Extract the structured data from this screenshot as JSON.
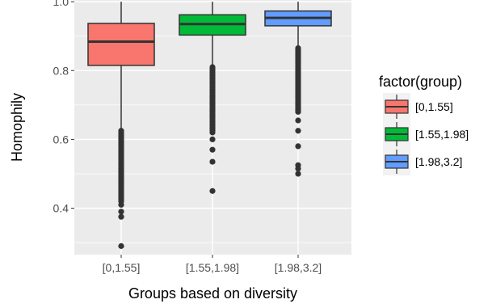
{
  "chart_data": {
    "type": "boxplot",
    "xlabel": "Groups based on diversity",
    "ylabel": "Homophily",
    "ylim": [
      0.265,
      1.005
    ],
    "yticks": [
      0.4,
      0.6,
      0.8,
      1.0
    ],
    "ytick_labels": [
      "0.4",
      "0.6",
      "0.8",
      "1.0"
    ],
    "categories": [
      "[0,1.55]",
      "[1.55,1.98]",
      "[1.98,3.2]"
    ],
    "legend": {
      "title": "factor(group)",
      "placement": "right",
      "entries": [
        "[0,1.55]",
        "[1.55,1.98]",
        "[1.98,3.2]"
      ]
    },
    "panel_background": "#ebebeb",
    "grid": true,
    "boxes": [
      {
        "name": "[0,1.55]",
        "color": "#F8766D",
        "whisker_low": 0.628,
        "q1": 0.815,
        "median": 0.884,
        "q3": 0.937,
        "whisker_high": 1.0,
        "outliers_range": [
          0.42,
          0.625
        ],
        "outliers_extra": [
          0.41,
          0.39,
          0.375,
          0.29
        ]
      },
      {
        "name": "[1.55,1.98]",
        "color": "#00BA38",
        "whisker_low": 0.812,
        "q1": 0.903,
        "median": 0.935,
        "q3": 0.962,
        "whisker_high": 1.0,
        "outliers_range": [
          0.62,
          0.81
        ],
        "outliers_extra": [
          0.6,
          0.57,
          0.535,
          0.45
        ]
      },
      {
        "name": "[1.98,3.2]",
        "color": "#619CFF",
        "whisker_low": 0.868,
        "q1": 0.93,
        "median": 0.953,
        "q3": 0.973,
        "whisker_high": 1.0,
        "outliers_range": [
          0.68,
          0.865
        ],
        "outliers_extra": [
          0.655,
          0.625,
          0.58,
          0.525,
          0.515,
          0.5
        ]
      }
    ]
  }
}
